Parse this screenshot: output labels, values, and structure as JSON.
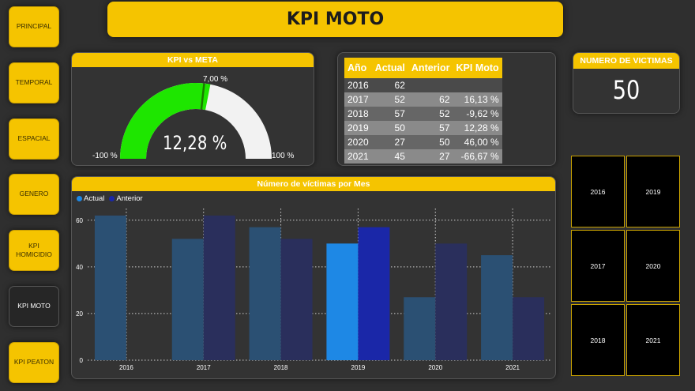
{
  "nav": [
    {
      "id": "principal",
      "label": "PRINCIPAL",
      "active": false
    },
    {
      "id": "temporal",
      "label": "TEMPORAL",
      "active": false
    },
    {
      "id": "espacial",
      "label": "ESPACIAL",
      "active": false
    },
    {
      "id": "genero",
      "label": "GENERO",
      "active": false
    },
    {
      "id": "kpi-homicidio",
      "label": "KPI HOMICIDIO",
      "active": false
    },
    {
      "id": "kpi-moto",
      "label": "KPI MOTO",
      "active": true
    },
    {
      "id": "kpi-peaton",
      "label": "KPI PEATON",
      "active": false
    }
  ],
  "header": {
    "title": "KPI MOTO"
  },
  "gauge": {
    "title": "KPI vs META",
    "value_label": "12,28 %",
    "value": 12.28,
    "min": -100,
    "max": 100,
    "target": 7,
    "target_label": "7,00 %",
    "min_label": "-100 %",
    "max_label": "100 %",
    "fill_color": "#1ee600",
    "track_color": "#f2f2f2",
    "target_color": "#1a7a00"
  },
  "table": {
    "headers": [
      "Año",
      "Actual",
      "Anterior",
      "KPI Moto"
    ],
    "rows": [
      [
        "2016",
        "62",
        "",
        ""
      ],
      [
        "2017",
        "52",
        "62",
        "16,13 %"
      ],
      [
        "2018",
        "57",
        "52",
        "-9,62 %"
      ],
      [
        "2019",
        "50",
        "57",
        "12,28 %"
      ],
      [
        "2020",
        "27",
        "50",
        "46,00 %"
      ],
      [
        "2021",
        "45",
        "27",
        "-66,67 %"
      ]
    ]
  },
  "victims_card": {
    "title": "NUMERO DE VICTIMAS",
    "value": "50"
  },
  "year_slicer": [
    "2016",
    "2019",
    "2017",
    "2020",
    "2018",
    "2021"
  ],
  "chart_data": {
    "type": "bar",
    "title": "Número de víctimas por Mes",
    "categories": [
      "2016",
      "2017",
      "2018",
      "2019",
      "2020",
      "2021"
    ],
    "series": [
      {
        "name": "Actual",
        "values": [
          62,
          52,
          57,
          50,
          27,
          45
        ],
        "color": "#2b5073",
        "highlight_color": "#1e88e5"
      },
      {
        "name": "Anterior",
        "values": [
          null,
          62,
          52,
          57,
          50,
          27
        ],
        "color": "#2a2f5c",
        "highlight_color": "#1a27a8"
      }
    ],
    "highlight_category": "2019",
    "yticks": [
      0,
      20,
      40,
      60
    ],
    "ylim": [
      0,
      65
    ],
    "legend": "top-left",
    "grid": true
  }
}
